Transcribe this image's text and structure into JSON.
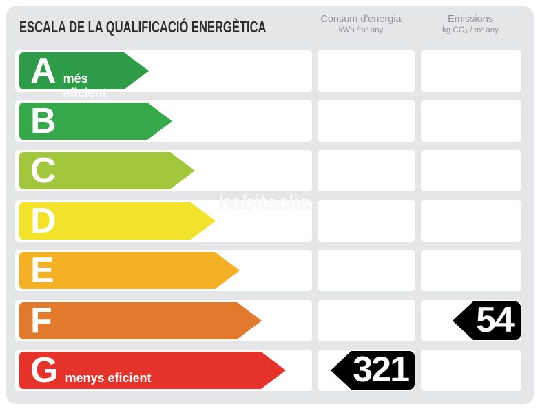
{
  "page": {
    "background": "#FFFFFF",
    "panel_color": "#E5E6E8",
    "badge_color": "#000000"
  },
  "title": "ESCALA DE LA QUALIFICACIÓ ENERGÈTICA",
  "columns": {
    "consum": {
      "line1": "Consum d'energia",
      "line2": "kWh /m²  any"
    },
    "emissions": {
      "line1": "Emissions",
      "line2": "kg CO₂  / m²  any"
    }
  },
  "watermark": "habitaclia",
  "scale": {
    "rows": [
      {
        "letter": "A",
        "label": "més eficient",
        "color": "#2E9C48",
        "arrow_width": 152,
        "consum_value": "",
        "emissions_value": ""
      },
      {
        "letter": "B",
        "label": "",
        "color": "#35A94A",
        "arrow_width": 186,
        "consum_value": "",
        "emissions_value": ""
      },
      {
        "letter": "C",
        "label": "",
        "color": "#A2C73C",
        "arrow_width": 219,
        "consum_value": "",
        "emissions_value": ""
      },
      {
        "letter": "D",
        "label": "",
        "color": "#F2E22A",
        "arrow_width": 249,
        "consum_value": "",
        "emissions_value": ""
      },
      {
        "letter": "E",
        "label": "",
        "color": "#F4B126",
        "arrow_width": 284,
        "consum_value": "",
        "emissions_value": ""
      },
      {
        "letter": "F",
        "label": "",
        "color": "#E17A2D",
        "arrow_width": 316,
        "consum_value": "",
        "emissions_value": "54"
      },
      {
        "letter": "G",
        "label": "menys eficient",
        "color": "#E5332C",
        "arrow_width": 351,
        "consum_value": "321",
        "emissions_value": ""
      }
    ]
  },
  "chart_data": {
    "type": "table",
    "title": "ESCALA DE LA QUALIFICACIÓ ENERGÈTICA",
    "categories": [
      "A",
      "B",
      "C",
      "D",
      "E",
      "F",
      "G"
    ],
    "category_notes": {
      "A": "més eficient",
      "G": "menys eficient"
    },
    "columns": [
      "Consum d'energia (kWh/m² any)",
      "Emissions (kg CO₂/m² any)"
    ],
    "values": {
      "consum_energia": {
        "rating": "G",
        "value": 321,
        "unit": "kWh/m² any"
      },
      "emissions": {
        "rating": "F",
        "value": 54,
        "unit": "kg CO₂/m² any"
      }
    },
    "scale_colors": {
      "A": "#2E9C48",
      "B": "#35A94A",
      "C": "#A2C73C",
      "D": "#F2E22A",
      "E": "#F4B126",
      "F": "#E17A2D",
      "G": "#E5332C"
    },
    "layout": "horizontal arrow bars increasing in length from A (best) to G (worst); black left-pointing value badges placed in the matching rating row"
  }
}
